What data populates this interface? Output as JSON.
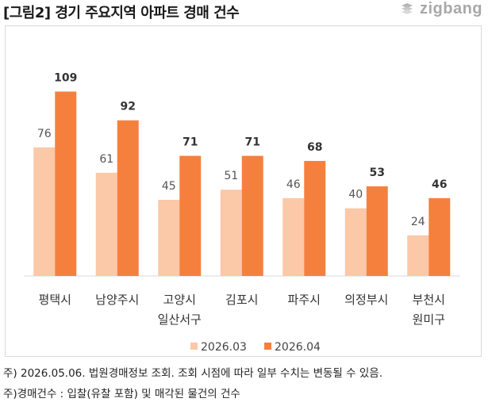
{
  "title": "[그림2] 경기 주요지역 아파트 경매 건수",
  "brand": {
    "name": "zigbang",
    "color": "#a8a8a8"
  },
  "notes": [
    "주) 2026.05.06. 법원경매정보 조회. 조회 시점에 따라 일부 수치는 변동될 수 있음.",
    "주)경매건수 : 입찰(유찰 포함) 및 매각된 물건의 건수"
  ],
  "chart_data": {
    "type": "bar",
    "title": "",
    "xlabel": "",
    "ylabel": "",
    "ylim": [
      0,
      120
    ],
    "grid": false,
    "legend": "bottom",
    "categories": [
      [
        "평택시"
      ],
      [
        "남양주시"
      ],
      [
        "고양시",
        "일산서구"
      ],
      [
        "김포시"
      ],
      [
        "파주시"
      ],
      [
        "의정부시"
      ],
      [
        "부천시",
        "원미구"
      ]
    ],
    "series": [
      {
        "name": "2026.03",
        "color": "#fbc8a8",
        "values": [
          76,
          61,
          45,
          51,
          46,
          40,
          24
        ]
      },
      {
        "name": "2026.04",
        "color": "#f5803e",
        "values": [
          109,
          92,
          71,
          71,
          68,
          53,
          46
        ]
      }
    ]
  }
}
